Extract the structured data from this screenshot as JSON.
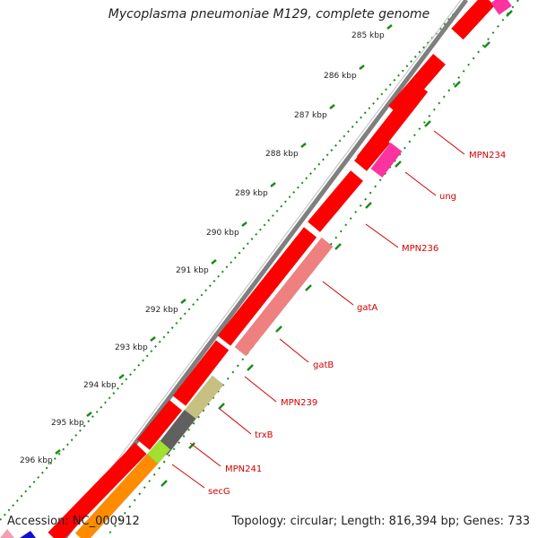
{
  "title": "Mycoplasma pneumoniae M129, complete genome",
  "footer": {
    "accession_prefix": "Accession: ",
    "accession": "NC_000912",
    "topology_prefix": "Topology: ",
    "topology": "circular",
    "length_prefix": "; Length: ",
    "length": "816,394 bp",
    "genes_prefix": "; Genes: ",
    "genes": "733"
  },
  "colors": {
    "backbone": "#808080",
    "tick": "#1a8a1a",
    "label": "#d40000",
    "forward_gene": "#ff0000",
    "reverse_gene_pink": "#ff33a0",
    "salmon": "#f08080",
    "olive": "#c8c080",
    "gray": "#606060",
    "lime": "#a0e030",
    "orange": "#ff8c00"
  },
  "ruler": [
    {
      "kbp": "285 kbp"
    },
    {
      "kbp": "286 kbp"
    },
    {
      "kbp": "287 kbp"
    },
    {
      "kbp": "288 kbp"
    },
    {
      "kbp": "289 kbp"
    },
    {
      "kbp": "290 kbp"
    },
    {
      "kbp": "291 kbp"
    },
    {
      "kbp": "292 kbp"
    },
    {
      "kbp": "293 kbp"
    },
    {
      "kbp": "294 kbp"
    },
    {
      "kbp": "295 kbp"
    },
    {
      "kbp": "296 kbp"
    }
  ],
  "genes": [
    {
      "name": "MPN234"
    },
    {
      "name": "ung"
    },
    {
      "name": "MPN236"
    },
    {
      "name": "gatA"
    },
    {
      "name": "gatB"
    },
    {
      "name": "MPN239"
    },
    {
      "name": "trxB"
    },
    {
      "name": "MPN241"
    },
    {
      "name": "secG"
    }
  ]
}
